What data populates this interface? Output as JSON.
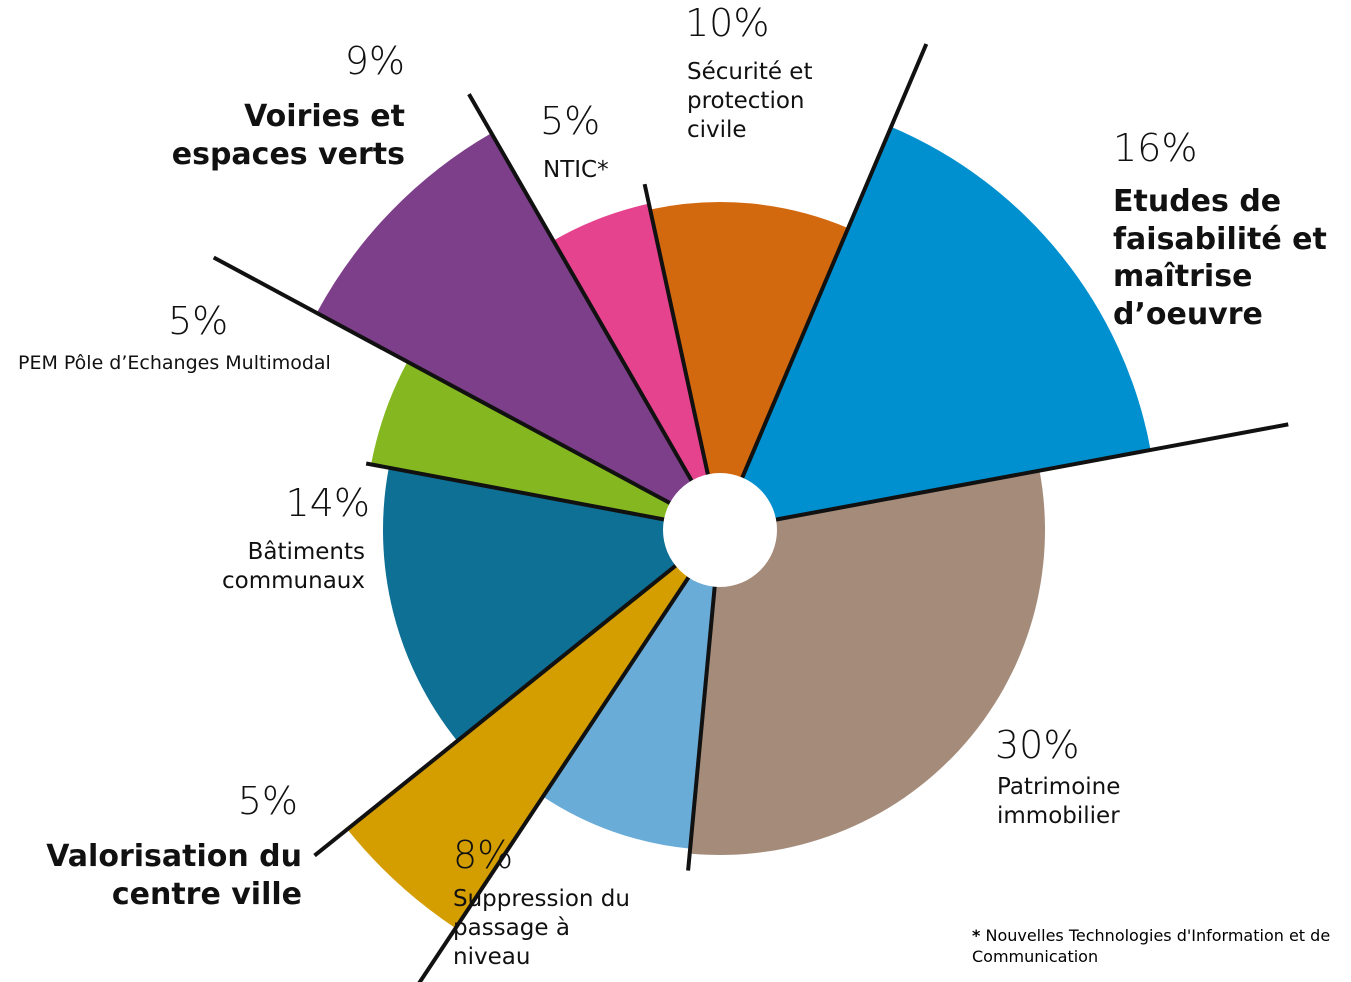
{
  "chart_data": {
    "type": "pie",
    "categories": [
      "Etudes de faisabilité et maîtrise d’oeuvre",
      "Patrimoine immobilier",
      "Suppression du passage à niveau",
      "Valorisation du centre ville",
      "Bâtiments communaux",
      "PEM Pôle d’Echanges Multimodal",
      "Voiries et espaces verts",
      "NTIC*",
      "Sécurité et protection civile"
    ],
    "values": [
      16,
      30,
      8,
      5,
      14,
      5,
      9,
      5,
      10
    ],
    "value_labels": [
      "16%",
      "30%",
      "8%",
      "5%",
      "14%",
      "5%",
      "9%",
      "5%",
      "10%"
    ],
    "colors": [
      "#0090cf",
      "#a48b7a",
      "#6aacd8",
      "#d49d00",
      "#0f7095",
      "#85b820",
      "#7d3f8a",
      "#e5438e",
      "#d3690f"
    ],
    "footnote_mark": "*",
    "footnote": "Nouvelles Technologies d'Information et de Communication"
  }
}
